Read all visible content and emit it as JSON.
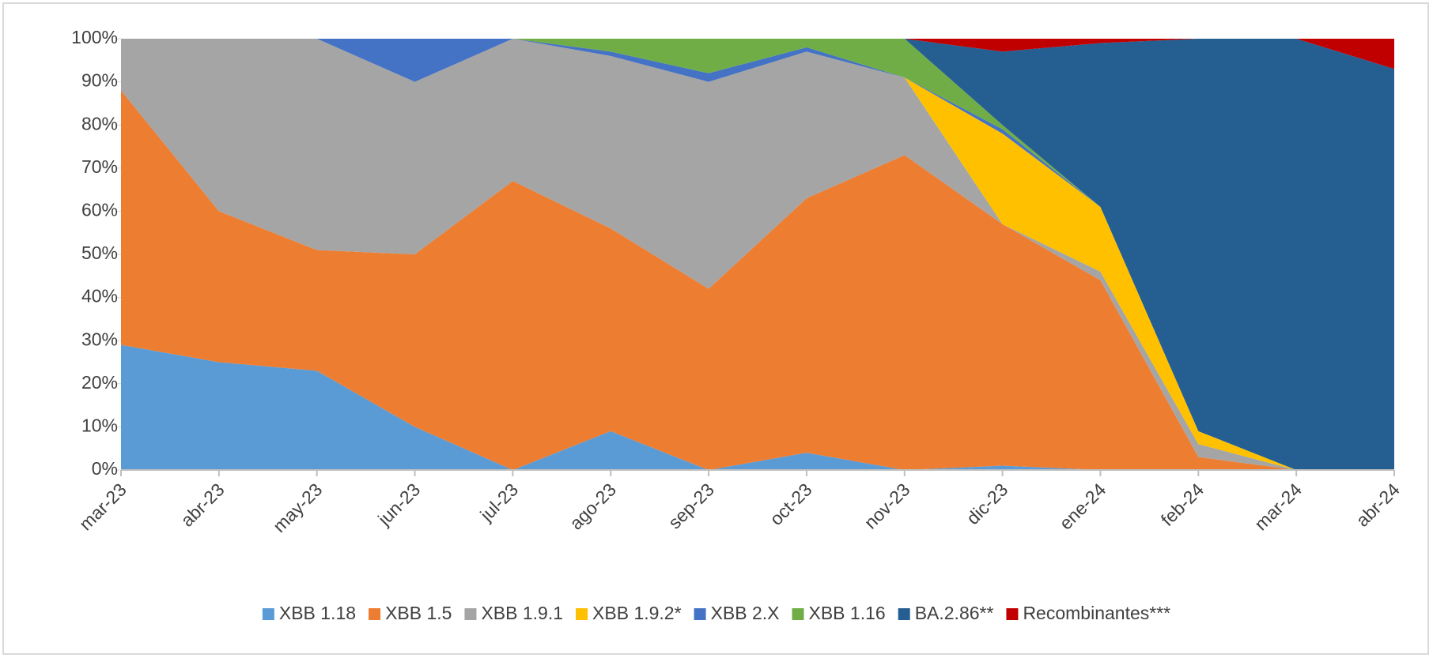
{
  "chart_data": {
    "type": "stacked_area",
    "categories": [
      "mar-23",
      "abr-23",
      "may-23",
      "jun-23",
      "jul-23",
      "ago-23",
      "sep-23",
      "oct-23",
      "nov-23",
      "dic-23",
      "ene-24",
      "feb-24",
      "mar-24",
      "abr-24"
    ],
    "series": [
      {
        "name": "XBB 1.18",
        "color": "#5b9bd5",
        "values": [
          29,
          25,
          23,
          10,
          0,
          9,
          0,
          4,
          0,
          1,
          0,
          0,
          0,
          0
        ]
      },
      {
        "name": "XBB 1.5",
        "color": "#ed7d31",
        "values": [
          59,
          35,
          28,
          40,
          67,
          47,
          42,
          59,
          73,
          56,
          44,
          3,
          0,
          0
        ]
      },
      {
        "name": "XBB 1.9.1",
        "color": "#a5a5a5",
        "values": [
          12,
          40,
          49,
          40,
          33,
          40,
          48,
          34,
          18,
          0,
          2,
          3,
          0,
          0
        ]
      },
      {
        "name": "XBB 1.9.2*",
        "color": "#ffc000",
        "values": [
          0,
          0,
          0,
          0,
          0,
          0,
          0,
          0,
          0,
          21,
          15,
          3,
          0,
          0
        ]
      },
      {
        "name": "XBB 2.X",
        "color": "#4472c4",
        "values": [
          0,
          0,
          0,
          10,
          0,
          1,
          2,
          1,
          0,
          1,
          0,
          0,
          0,
          0
        ]
      },
      {
        "name": "XBB 1.16",
        "color": "#70ad47",
        "values": [
          0,
          0,
          0,
          0,
          0,
          3,
          8,
          2,
          9,
          1,
          0,
          0,
          0,
          0
        ]
      },
      {
        "name": "BA.2.86**",
        "color": "#255e91",
        "values": [
          0,
          0,
          0,
          0,
          0,
          0,
          0,
          0,
          0,
          17,
          38,
          91,
          100,
          93
        ]
      },
      {
        "name": "Recombinantes***",
        "color": "#c00000",
        "values": [
          0,
          0,
          0,
          0,
          0,
          0,
          0,
          0,
          0,
          3,
          1,
          0,
          0,
          7
        ]
      }
    ],
    "ylim": [
      0,
      100
    ],
    "yticks": [
      {
        "value": 0,
        "label": "0%"
      },
      {
        "value": 10,
        "label": "10%"
      },
      {
        "value": 20,
        "label": "20%"
      },
      {
        "value": 30,
        "label": "30%"
      },
      {
        "value": 40,
        "label": "40%"
      },
      {
        "value": 50,
        "label": "50%"
      },
      {
        "value": 60,
        "label": "60%"
      },
      {
        "value": 70,
        "label": "70%"
      },
      {
        "value": 80,
        "label": "80%"
      },
      {
        "value": 90,
        "label": "90%"
      },
      {
        "value": 100,
        "label": "100%"
      }
    ],
    "legend": "bottom"
  }
}
